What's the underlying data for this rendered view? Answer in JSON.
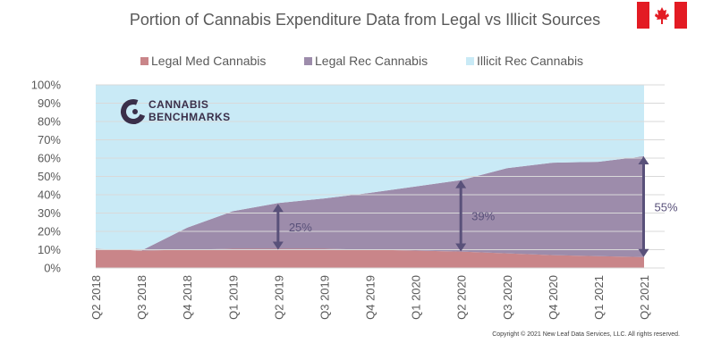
{
  "chart_data": {
    "type": "area",
    "stacked": true,
    "title": "Portion of Cannabis Expenditure  Data from Legal vs Illicit Sources",
    "categories": [
      "Q2 2018",
      "Q3 2018",
      "Q4 2018",
      "Q1 2019",
      "Q2 2019",
      "Q3 2019",
      "Q4 2019",
      "Q1 2020",
      "Q2 2020",
      "Q3 2020",
      "Q4 2020",
      "Q1 2021",
      "Q2 2021"
    ],
    "series": [
      {
        "name": "Legal Med Cannabis",
        "color": "#c98589",
        "values": [
          10.5,
          9.5,
          10,
          10.5,
          10.5,
          10.5,
          10,
          9.5,
          9,
          8,
          7,
          6.5,
          6
        ]
      },
      {
        "name": "Legal Rec Cannabis",
        "color": "#9d8cab",
        "values": [
          0,
          0,
          12,
          20.5,
          25,
          27.5,
          31,
          35,
          39,
          46.5,
          50.5,
          51.5,
          55
        ]
      },
      {
        "name": "Illicit Rec Cannabis",
        "color": "#c9eaf6",
        "values": [
          89.5,
          90.5,
          78,
          69,
          64.5,
          62,
          59,
          55.5,
          52,
          45.5,
          42.5,
          42,
          39
        ]
      }
    ],
    "ylim": [
      0,
      100
    ],
    "yticks": [
      "0%",
      "10%",
      "20%",
      "30%",
      "40%",
      "50%",
      "60%",
      "70%",
      "80%",
      "90%",
      "100%"
    ],
    "legend_position": "top",
    "annotations": [
      {
        "text": "25%",
        "category": "Q2 2019",
        "from": 10,
        "to": 35
      },
      {
        "text": "39%",
        "category": "Q2 2020",
        "from": 9,
        "to": 48
      },
      {
        "text": "55%",
        "category": "Q2 2021",
        "from": 6,
        "to": 61
      }
    ],
    "logo_lines": [
      "CANNABIS",
      "BENCHMARKS"
    ],
    "flag": "canada-flag",
    "copyright": "Copyright © 2021 New Leaf Data Services, LLC. All rights reserved.",
    "colors": {
      "annotation": "#59517a",
      "text": "#595959"
    }
  }
}
